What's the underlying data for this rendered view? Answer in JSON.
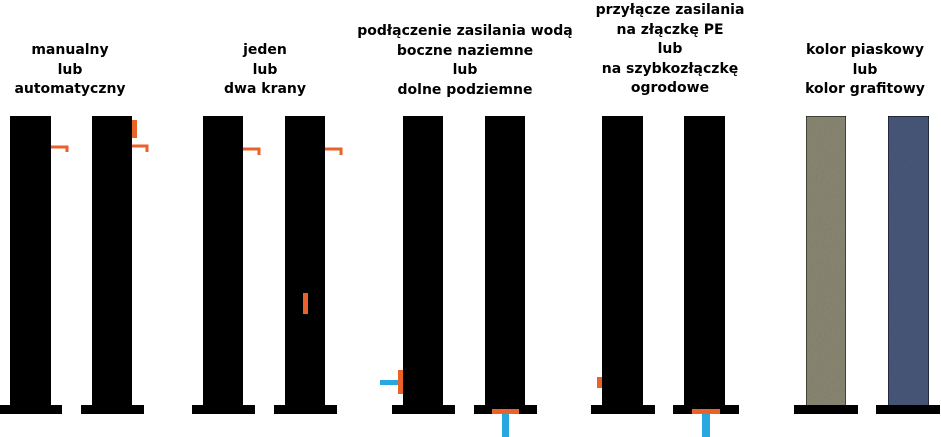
{
  "colors": {
    "post": "#000000",
    "fitting": "#e8622a",
    "water_pipe": "#29a8e0",
    "sand_texture": "#8e8b76",
    "graphite_texture": "#4a5a7e"
  },
  "captions": [
    {
      "lines": [
        "manualny",
        "lub",
        "automatyczny"
      ]
    },
    {
      "lines": [
        "jeden",
        "lub",
        "dwa krany"
      ]
    },
    {
      "lines": [
        "podłączenie zasilania wodą",
        "boczne naziemne",
        "lub",
        "dolne podziemne"
      ]
    },
    {
      "lines": [
        "przyłącze zasilania",
        "na złączkę PE",
        "lub",
        "na szybkozłączkę",
        "ogrodowe"
      ]
    },
    {
      "lines": [
        "kolor piaskowy",
        "lub",
        "kolor grafitowy"
      ]
    }
  ]
}
